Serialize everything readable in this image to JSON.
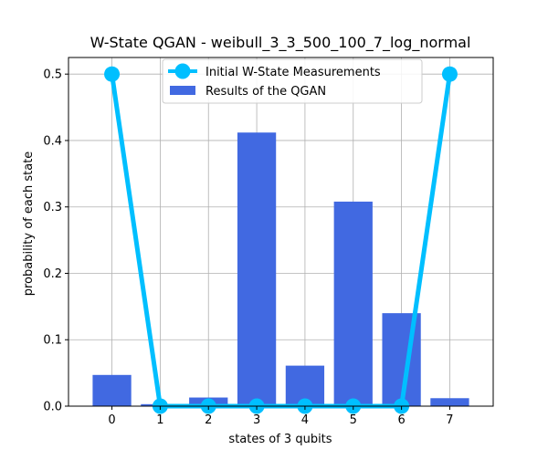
{
  "chart_data": {
    "type": "bar",
    "title": "W-State QGAN - weibull_3_3_500_100_7_log_normal",
    "xlabel": "states of 3 qubits",
    "ylabel": "probability of each state",
    "categories": [
      "0",
      "1",
      "2",
      "3",
      "4",
      "5",
      "6",
      "7"
    ],
    "x": [
      0,
      1,
      2,
      3,
      4,
      5,
      6,
      7
    ],
    "xlim": [
      -0.9,
      7.9
    ],
    "ylim": [
      0,
      0.525
    ],
    "yticks": [
      0.0,
      0.1,
      0.2,
      0.3,
      0.4,
      0.5
    ],
    "ytick_labels": [
      "0.0",
      "0.1",
      "0.2",
      "0.3",
      "0.4",
      "0.5"
    ],
    "grid": true,
    "legend_position": "upper-center",
    "series": [
      {
        "name": "Results of the QGAN",
        "type": "bar",
        "color": "#4169e1",
        "values": [
          0.047,
          0.003,
          0.013,
          0.412,
          0.061,
          0.308,
          0.14,
          0.012
        ]
      },
      {
        "name": "Initial W-State Measurements",
        "type": "line",
        "color": "#00bfff",
        "values": [
          0.5,
          0.0,
          0.0,
          0.0,
          0.0,
          0.0,
          0.0,
          0.5
        ]
      }
    ]
  }
}
